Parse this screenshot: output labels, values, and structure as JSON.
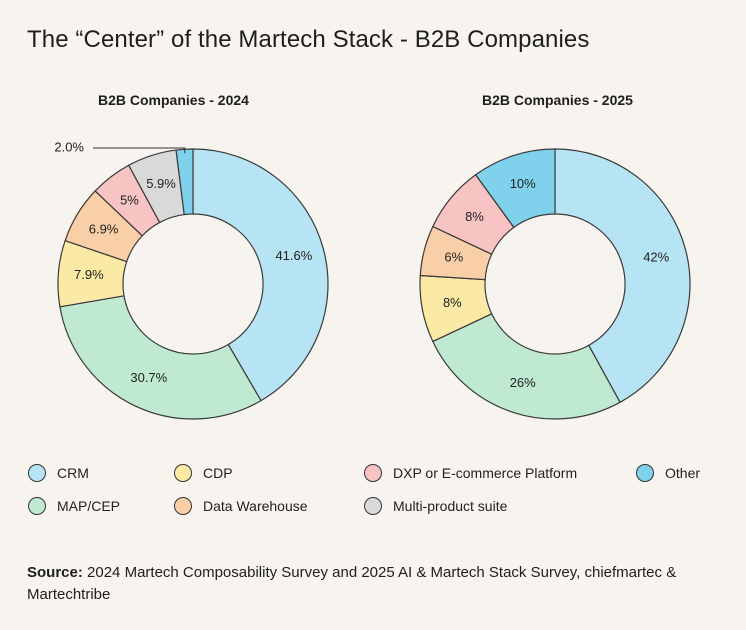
{
  "page": {
    "title": "The “Center” of the Martech Stack - B2B Companies",
    "source_label": "Source:",
    "source_text": "2024 Martech Composability Survey and 2025 AI & Martech Stack Survey, chiefmartec & Martechtribe"
  },
  "colors": {
    "CRM": "#b7e4f4",
    "MAP/CEP": "#bfe9d1",
    "CDP": "#fbe9a6",
    "Data Warehouse": "#f8cfa6",
    "Multi-product suite": "#d9d9d9",
    "DXP or E-commerce Platform": "#f7c3c3",
    "Other": "#7fd1ec"
  },
  "legend": [
    {
      "label": "CRM"
    },
    {
      "label": "CDP"
    },
    {
      "label": "DXP or E-commerce Platform"
    },
    {
      "label": "Other"
    },
    {
      "label": "MAP/CEP"
    },
    {
      "label": "Data Warehouse"
    },
    {
      "label": "Multi-product suite"
    }
  ],
  "chart_data": [
    {
      "type": "pie",
      "donut": true,
      "title": "B2B Companies - 2024",
      "slices": [
        {
          "category": "CRM",
          "value": 41.6,
          "label": "41.6%"
        },
        {
          "category": "MAP/CEP",
          "value": 30.7,
          "label": "30.7%"
        },
        {
          "category": "CDP",
          "value": 7.9,
          "label": "7.9%"
        },
        {
          "category": "Data Warehouse",
          "value": 6.9,
          "label": "6.9%"
        },
        {
          "category": "DXP or E-commerce Platform",
          "value": 5,
          "label": "5%"
        },
        {
          "category": "Multi-product suite",
          "value": 5.9,
          "label": "5.9%"
        },
        {
          "category": "Other",
          "value": 2.0,
          "label": "2.0%"
        }
      ]
    },
    {
      "type": "pie",
      "donut": true,
      "title": "B2B Companies - 2025",
      "slices": [
        {
          "category": "CRM",
          "value": 42,
          "label": "42%"
        },
        {
          "category": "MAP/CEP",
          "value": 26,
          "label": "26%"
        },
        {
          "category": "CDP",
          "value": 8,
          "label": "8%"
        },
        {
          "category": "Data Warehouse",
          "value": 6,
          "label": "6%"
        },
        {
          "category": "DXP or E-commerce Platform",
          "value": 8,
          "label": "8%"
        },
        {
          "category": "Other",
          "value": 10,
          "label": "10%"
        }
      ]
    }
  ]
}
